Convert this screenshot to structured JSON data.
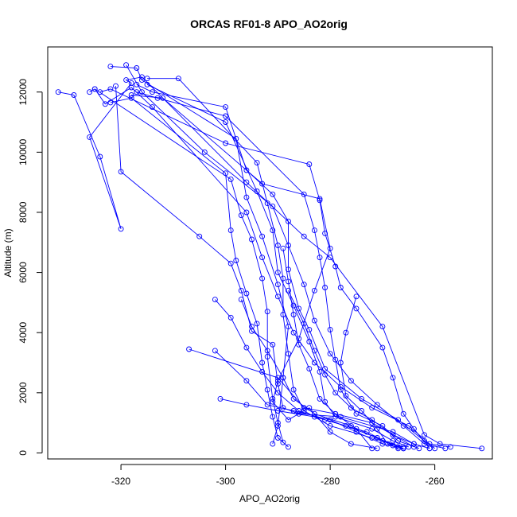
{
  "chart_data": {
    "type": "line",
    "title": "ORCAS RF01-8 APO_AO2orig",
    "xlabel": "APO_AO2orig",
    "ylabel": "Altitude (m)",
    "xlim": [
      -334,
      -249
    ],
    "ylim": [
      -200,
      13500
    ],
    "x_ticks": [
      -320,
      -300,
      -280,
      -260
    ],
    "y_ticks": [
      0,
      2000,
      4000,
      6000,
      8000,
      10000,
      12000
    ],
    "x_tick_labels": [
      "-320",
      "-300",
      "-280",
      "-260"
    ],
    "y_tick_labels": [
      "0",
      "2000",
      "4000",
      "6000",
      "8000",
      "10000",
      "12000"
    ],
    "grid": false,
    "markers": "open-circle",
    "series": [
      {
        "color": "#0000ff",
        "points": [
          [
            -332,
            12000
          ],
          [
            -329,
            11900
          ],
          [
            -324,
            9850
          ],
          [
            -320,
            7450
          ],
          [
            -326,
            10500
          ],
          [
            -318,
            12300
          ],
          [
            -319,
            12400
          ],
          [
            -316,
            12500
          ],
          [
            -296,
            9000
          ],
          [
            -285,
            7200
          ],
          [
            -280,
            6500
          ],
          [
            -270,
            4200
          ],
          [
            -262,
            600
          ],
          [
            -259,
            300
          ],
          [
            -251,
            150
          ]
        ]
      },
      {
        "color": "#0000ff",
        "points": [
          [
            -325,
            12100
          ],
          [
            -323,
            11600
          ],
          [
            -318,
            12150
          ],
          [
            -314,
            11500
          ],
          [
            -296,
            8000
          ],
          [
            -293,
            6500
          ],
          [
            -290,
            5200
          ],
          [
            -287,
            4000
          ],
          [
            -283,
            3000
          ],
          [
            -278,
            2200
          ],
          [
            -272,
            1500
          ],
          [
            -265,
            900
          ],
          [
            -261,
            300
          ],
          [
            -257,
            200
          ]
        ]
      },
      {
        "color": "#0000ff",
        "points": [
          [
            -322,
            12850
          ],
          [
            -317,
            12800
          ],
          [
            -316,
            12400
          ],
          [
            -298,
            10450
          ],
          [
            -296,
            8500
          ],
          [
            -293,
            7200
          ],
          [
            -290,
            5600
          ],
          [
            -288,
            4200
          ],
          [
            -289,
            2500
          ],
          [
            -290,
            900
          ],
          [
            -291,
            300
          ]
        ]
      },
      {
        "color": "#0000ff",
        "points": [
          [
            -321,
            12200
          ],
          [
            -320,
            9350
          ],
          [
            -305,
            7200
          ],
          [
            -299,
            6300
          ],
          [
            -297,
            5400
          ],
          [
            -295,
            4050
          ],
          [
            -291,
            3600
          ],
          [
            -290,
            2300
          ],
          [
            -289,
            1500
          ],
          [
            -286,
            1300
          ],
          [
            -278,
            1200
          ],
          [
            -268,
            700
          ],
          [
            -264,
            300
          ]
        ]
      },
      {
        "color": "#0000ff",
        "points": [
          [
            -317,
            12250
          ],
          [
            -314,
            12000
          ],
          [
            -300,
            11500
          ],
          [
            -296,
            9400
          ],
          [
            -291,
            8600
          ],
          [
            -288,
            7700
          ],
          [
            -288,
            6100
          ],
          [
            -286,
            4800
          ],
          [
            -284,
            4100
          ],
          [
            -281,
            2800
          ],
          [
            -274,
            1800
          ],
          [
            -267,
            1100
          ],
          [
            -262,
            400
          ],
          [
            -260,
            150
          ]
        ]
      },
      {
        "color": "#0000ff",
        "points": [
          [
            -326,
            12000
          ],
          [
            -325,
            12100
          ],
          [
            -299,
            9100
          ],
          [
            -297,
            7900
          ],
          [
            -295,
            7100
          ],
          [
            -293,
            5800
          ],
          [
            -292,
            4700
          ],
          [
            -292,
            3200
          ],
          [
            -291,
            1800
          ],
          [
            -290,
            1000
          ],
          [
            -289,
            350
          ]
        ]
      },
      {
        "color": "#0000ff",
        "points": [
          [
            -319,
            12900
          ],
          [
            -316,
            12000
          ],
          [
            -304,
            10000
          ],
          [
            -291,
            8200
          ],
          [
            -288,
            6900
          ],
          [
            -285,
            5600
          ],
          [
            -283,
            4400
          ],
          [
            -280,
            3300
          ],
          [
            -276,
            2400
          ],
          [
            -271,
            1600
          ],
          [
            -266,
            900
          ],
          [
            -262,
            300
          ],
          [
            -258,
            150
          ]
        ]
      },
      {
        "color": "#0000ff",
        "points": [
          [
            -315,
            12450
          ],
          [
            -309,
            12450
          ],
          [
            -294,
            9650
          ],
          [
            -292,
            8300
          ],
          [
            -290,
            6900
          ],
          [
            -289,
            5800
          ],
          [
            -289,
            4600
          ],
          [
            -288,
            3300
          ],
          [
            -287,
            2100
          ],
          [
            -285,
            1400
          ],
          [
            -280,
            900
          ],
          [
            -272,
            500
          ],
          [
            -266,
            200
          ]
        ]
      },
      {
        "color": "#0000ff",
        "points": [
          [
            -324,
            12000
          ],
          [
            -322,
            12100
          ],
          [
            -300,
            10300
          ],
          [
            -284,
            9600
          ],
          [
            -282,
            8400
          ],
          [
            -281,
            7300
          ],
          [
            -279,
            6200
          ],
          [
            -278,
            5500
          ],
          [
            -275,
            4800
          ],
          [
            -270,
            3500
          ],
          [
            -268,
            2500
          ],
          [
            -266,
            1300
          ],
          [
            -264,
            800
          ],
          [
            -261,
            150
          ]
        ]
      },
      {
        "color": "#0000ff",
        "points": [
          [
            -317,
            12000
          ],
          [
            -313,
            11800
          ],
          [
            -300,
            11200
          ],
          [
            -285,
            8600
          ],
          [
            -283,
            7400
          ],
          [
            -282,
            6500
          ],
          [
            -281,
            5500
          ],
          [
            -280,
            4100
          ],
          [
            -279,
            3100
          ],
          [
            -278,
            2100
          ],
          [
            -275,
            1300
          ],
          [
            -270,
            900
          ],
          [
            -267,
            400
          ],
          [
            -263,
            150
          ]
        ]
      },
      {
        "color": "#0000ff",
        "points": [
          [
            -322,
            11650
          ],
          [
            -318,
            11800
          ],
          [
            -300,
            9300
          ],
          [
            -299,
            7400
          ],
          [
            -298,
            6400
          ],
          [
            -296,
            5300
          ],
          [
            -294,
            4300
          ],
          [
            -293,
            3000
          ],
          [
            -292,
            2100
          ],
          [
            -291,
            1200
          ],
          [
            -290,
            500
          ],
          [
            -288,
            200
          ]
        ]
      },
      {
        "color": "#0000ff",
        "points": [
          [
            -318,
            11900
          ],
          [
            -312,
            11800
          ],
          [
            -293,
            8950
          ],
          [
            -282,
            8450
          ],
          [
            -280,
            6800
          ],
          [
            -283,
            5400
          ],
          [
            -286,
            3800
          ],
          [
            -290,
            2400
          ],
          [
            -291,
            1700
          ],
          [
            -288,
            1100
          ],
          [
            -284,
            1500
          ],
          [
            -280,
            700
          ],
          [
            -276,
            300
          ],
          [
            -271,
            150
          ]
        ]
      },
      {
        "color": "#0000ff",
        "points": [
          [
            -315,
            12250
          ],
          [
            -300,
            11000
          ],
          [
            -294,
            8700
          ],
          [
            -291,
            7400
          ],
          [
            -290,
            6000
          ],
          [
            -287,
            4900
          ],
          [
            -284,
            3700
          ],
          [
            -282,
            2700
          ],
          [
            -281,
            1700
          ],
          [
            -279,
            1200
          ],
          [
            -272,
            800
          ],
          [
            -268,
            400
          ],
          [
            -265,
            200
          ]
        ]
      },
      {
        "color": "#0000ff",
        "points": [
          [
            -307,
            3450
          ],
          [
            -290,
            2500
          ],
          [
            -285,
            1500
          ],
          [
            -279,
            1300
          ],
          [
            -272,
            1000
          ],
          [
            -268,
            600
          ],
          [
            -264,
            300
          ],
          [
            -261,
            150
          ]
        ]
      },
      {
        "color": "#0000ff",
        "points": [
          [
            -302,
            3400
          ],
          [
            -296,
            2400
          ],
          [
            -292,
            1600
          ],
          [
            -287,
            1400
          ],
          [
            -280,
            1100
          ],
          [
            -275,
            700
          ],
          [
            -270,
            300
          ],
          [
            -266,
            150
          ]
        ]
      },
      {
        "color": "#0000ff",
        "points": [
          [
            -301,
            1800
          ],
          [
            -296,
            1600
          ],
          [
            -290,
            1400
          ],
          [
            -283,
            1200
          ],
          [
            -277,
            900
          ],
          [
            -271,
            500
          ],
          [
            -267,
            200
          ]
        ]
      },
      {
        "color": "#0000ff",
        "points": [
          [
            -302,
            5100
          ],
          [
            -299,
            4500
          ],
          [
            -296,
            3500
          ],
          [
            -293,
            2700
          ],
          [
            -290,
            2000
          ],
          [
            -286,
            1400
          ],
          [
            -281,
            1100
          ],
          [
            -273,
            700
          ],
          [
            -268,
            250
          ]
        ]
      },
      {
        "color": "#0000ff",
        "points": [
          [
            -297,
            5100
          ],
          [
            -295,
            4200
          ],
          [
            -292,
            3400
          ],
          [
            -289,
            2500
          ],
          [
            -287,
            1800
          ],
          [
            -283,
            1300
          ],
          [
            -276,
            900
          ],
          [
            -270,
            400
          ],
          [
            -266,
            150
          ]
        ]
      },
      {
        "color": "#0000ff",
        "points": [
          [
            -288,
            5400
          ],
          [
            -285,
            4300
          ],
          [
            -283,
            3400
          ],
          [
            -281,
            2600
          ],
          [
            -279,
            2000
          ],
          [
            -276,
            1500
          ],
          [
            -272,
            1100
          ],
          [
            -268,
            600
          ],
          [
            -264,
            200
          ]
        ]
      },
      {
        "color": "#0000ff",
        "points": [
          [
            -275,
            5200
          ],
          [
            -277,
            4000
          ],
          [
            -278,
            3000
          ],
          [
            -277,
            1900
          ],
          [
            -274,
            1400
          ],
          [
            -271,
            800
          ],
          [
            -269,
            300
          ],
          [
            -267,
            150
          ]
        ]
      },
      {
        "color": "#0000ff",
        "points": [
          [
            -289,
            6800
          ],
          [
            -288,
            5700
          ],
          [
            -287,
            4600
          ],
          [
            -286,
            3600
          ],
          [
            -284,
            2800
          ],
          [
            -282,
            1800
          ],
          [
            -279,
            1300
          ],
          [
            -275,
            800
          ],
          [
            -272,
            150
          ]
        ]
      }
    ]
  }
}
